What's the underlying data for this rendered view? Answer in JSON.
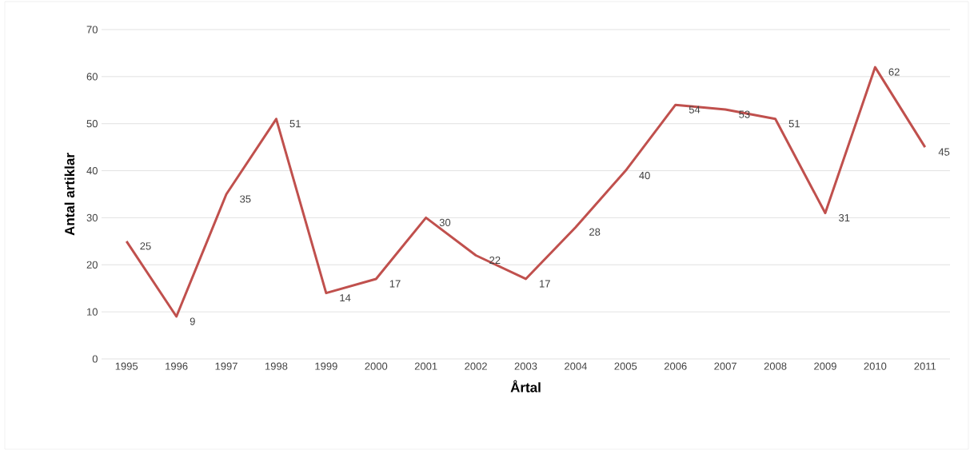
{
  "chart_data": {
    "type": "line",
    "xlabel": "Årtal",
    "ylabel": "Antal artiklar",
    "categories": [
      "1995",
      "1996",
      "1997",
      "1998",
      "1999",
      "2000",
      "2001",
      "2002",
      "2003",
      "2004",
      "2005",
      "2006",
      "2007",
      "2008",
      "2009",
      "2010",
      "2011"
    ],
    "series": [
      {
        "color": "#c0504d",
        "values": [
          25,
          9,
          35,
          51,
          14,
          17,
          30,
          22,
          17,
          28,
          40,
          54,
          53,
          51,
          31,
          62,
          45
        ]
      }
    ],
    "ylim": [
      0,
      70
    ],
    "yticks": [
      0,
      10,
      20,
      30,
      40,
      50,
      60,
      70
    ],
    "grid": "y",
    "data_labels": true,
    "marker": "none",
    "line_style": "solid"
  }
}
